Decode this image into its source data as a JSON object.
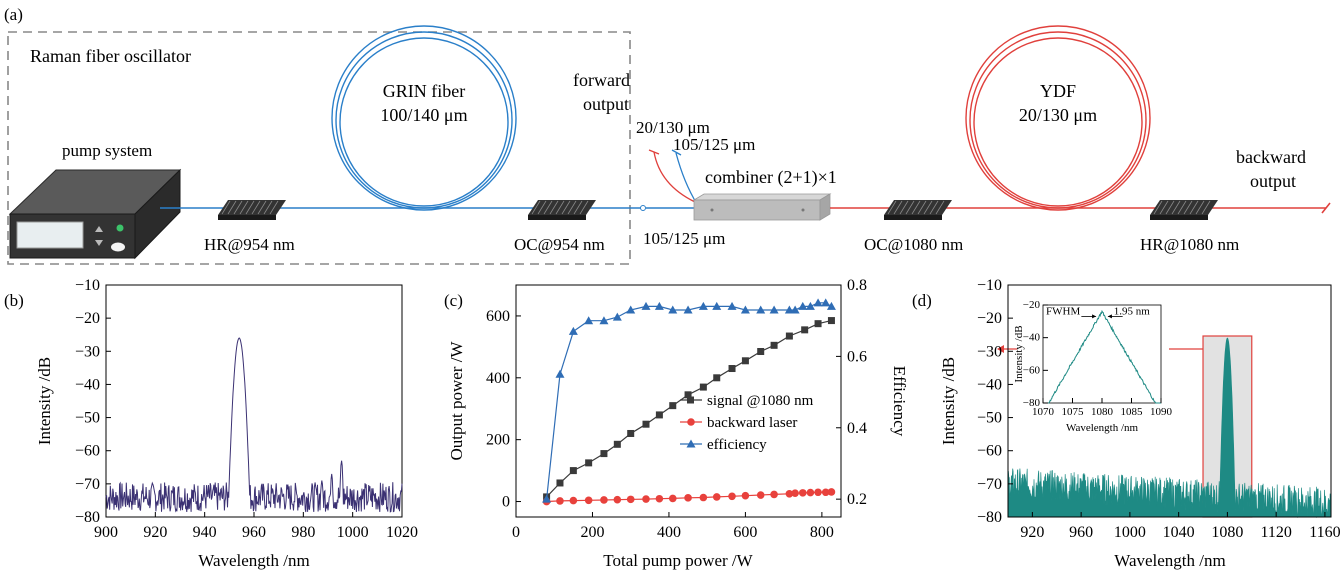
{
  "setup": {
    "panel_label": "(a)",
    "oscillator_label": "Raman fiber oscillator",
    "pump_label": "pump system",
    "grin_label": "GRIN fiber",
    "grin_size": "100/140 μm",
    "hr954": "HR@954 nm",
    "oc954": "OC@954 nm",
    "forward_output_1": "forward",
    "forward_output_2": "output",
    "fiber_20_130": "20/130 μm",
    "fiber_105_125_top": "105/125 μm",
    "fiber_105_125_bottom": "105/125 μm",
    "combiner_label": "combiner (2+1)×1",
    "ydf_label": "YDF",
    "ydf_size": "20/130 μm",
    "oc1080": "OC@1080 nm",
    "hr1080": "HR@1080 nm",
    "backward_output_1": "backward",
    "backward_output_2": "output",
    "colors": {
      "blue_fiber": "#2a7fc9",
      "red_fiber": "#e0403c",
      "box_border": "#888888"
    }
  },
  "chart_data": [
    {
      "panel": "(b)",
      "type": "line",
      "xlabel": "Wavelength /nm",
      "ylabel": "Intensity /dB",
      "xlim": [
        900,
        1020
      ],
      "ylim": [
        -80,
        -10
      ],
      "xticks": [
        900,
        920,
        940,
        960,
        980,
        1000,
        1020
      ],
      "yticks": [
        -80,
        -70,
        -60,
        -50,
        -40,
        -30,
        -20,
        -10
      ],
      "color": "#3b3173",
      "noise_floor": -74,
      "peaks": [
        {
          "center": 954,
          "height": -26,
          "width": 1.5
        },
        {
          "center": 987.5,
          "height": -69,
          "width": 0.5
        },
        {
          "center": 991.5,
          "height": -67,
          "width": 0.5
        },
        {
          "center": 995.5,
          "height": -63,
          "width": 0.5
        }
      ]
    },
    {
      "panel": "(c)",
      "type": "line",
      "xlabel": "Total pump power /W",
      "ylabel": "Output power /W",
      "y2label": "Efficiency",
      "xlim": [
        0,
        850
      ],
      "ylim": [
        -50,
        700
      ],
      "y2lim": [
        0.15,
        0.8
      ],
      "xticks": [
        0,
        200,
        400,
        600,
        800
      ],
      "yticks": [
        0,
        200,
        400,
        600
      ],
      "y2ticks": [
        0.2,
        0.4,
        0.6,
        0.8
      ],
      "legend": [
        "signal @1080 nm",
        "backward laser",
        "efficiency"
      ],
      "series": [
        {
          "name": "signal @1080 nm",
          "color": "#3a3a3a",
          "marker": "square",
          "x": [
            80,
            115,
            150,
            190,
            230,
            265,
            300,
            340,
            375,
            410,
            450,
            490,
            525,
            565,
            600,
            640,
            675,
            715,
            755,
            790,
            825
          ],
          "y": [
            15,
            60,
            100,
            125,
            155,
            185,
            220,
            250,
            280,
            310,
            345,
            370,
            400,
            430,
            455,
            485,
            505,
            535,
            555,
            575,
            585
          ]
        },
        {
          "name": "backward laser",
          "color": "#e8413c",
          "marker": "circle",
          "x": [
            80,
            115,
            150,
            190,
            230,
            265,
            300,
            340,
            375,
            410,
            450,
            490,
            525,
            565,
            600,
            640,
            675,
            715,
            730,
            750,
            770,
            790,
            810,
            825
          ],
          "y": [
            0,
            2,
            3,
            4,
            5,
            6,
            7,
            8,
            9,
            10,
            12,
            13,
            15,
            17,
            19,
            21,
            23,
            25,
            27,
            28,
            29,
            30,
            30,
            31
          ]
        },
        {
          "name": "efficiency",
          "color": "#2f6db5",
          "marker": "triangle",
          "axis": "y2",
          "x": [
            80,
            115,
            150,
            190,
            230,
            265,
            300,
            340,
            375,
            410,
            450,
            490,
            525,
            565,
            600,
            640,
            675,
            715,
            730,
            750,
            770,
            790,
            810,
            825
          ],
          "y": [
            0.2,
            0.55,
            0.67,
            0.7,
            0.7,
            0.71,
            0.73,
            0.74,
            0.74,
            0.73,
            0.73,
            0.74,
            0.74,
            0.74,
            0.73,
            0.73,
            0.73,
            0.73,
            0.73,
            0.74,
            0.74,
            0.75,
            0.75,
            0.74
          ]
        }
      ]
    },
    {
      "panel": "(d)",
      "type": "line",
      "xlabel": "Wavelength /nm",
      "ylabel": "Intensity /dB",
      "xlim": [
        900,
        1165
      ],
      "ylim": [
        -80,
        -10
      ],
      "xticks": [
        920,
        960,
        1000,
        1040,
        1080,
        1120,
        1160
      ],
      "yticks": [
        -80,
        -70,
        -60,
        -50,
        -40,
        -30,
        -20,
        -10
      ],
      "color": "#1e8a84",
      "noise_floor_start": -70,
      "noise_floor_end": -76,
      "peak": {
        "center": 1080,
        "height": -26,
        "width": 2
      },
      "highlight_range": [
        1060,
        1100
      ],
      "inset": {
        "xlabel": "Wavelength /nm",
        "ylabel": "Intensity /dB",
        "xlim": [
          1070,
          1090
        ],
        "ylim": [
          -80,
          -20
        ],
        "xticks": [
          1070,
          1075,
          1080,
          1085,
          1090
        ],
        "yticks": [
          -80,
          -60,
          -40,
          -20
        ],
        "fwhm_label": "FWHM",
        "fwhm_value": "1.95 nm",
        "peak_center": 1080,
        "peak_height": -24
      }
    }
  ]
}
